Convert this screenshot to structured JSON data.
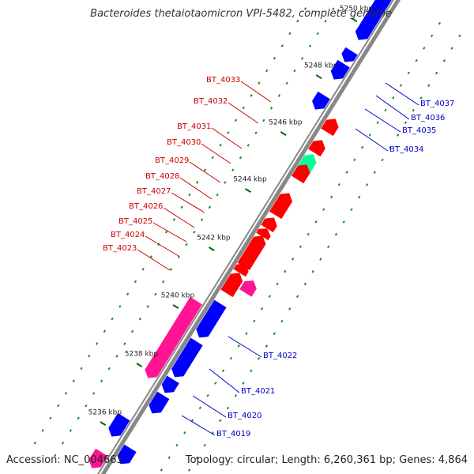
{
  "title": "Bacteroides thetaiotaomicron VPI-5482, complete genome",
  "footer": {
    "accession": "Accession: NC_004663",
    "summary": "Topology: circular; Length: 6,260,361 bp; Genes: 4,864"
  },
  "colors": {
    "backbone": "#888888",
    "backbone_highlight": "#ffffff",
    "forward": "#0000ff",
    "reverse": "#ff0000",
    "rna": "#ff1493",
    "highlight": "#00ff99",
    "dot": "#1a8f1a",
    "tick_major": "#006400",
    "label_red": "#cc0000",
    "label_blue": "#0000cc"
  },
  "ticks": [
    "5236 kbp",
    "5238 kbp",
    "5240 kbp",
    "5242 kbp",
    "5244 kbp",
    "5246 kbp",
    "5248 kbp",
    "5250 kbp"
  ],
  "genes": [
    {
      "id": "BT_4033",
      "strand": "minus",
      "category": "CDS"
    },
    {
      "id": "BT_4032",
      "strand": "minus",
      "category": "CDS"
    },
    {
      "id": "BT_4031",
      "strand": "minus",
      "category": "CDS"
    },
    {
      "id": "BT_4030",
      "strand": "minus",
      "category": "CDS"
    },
    {
      "id": "BT_4029",
      "strand": "minus",
      "category": "CDS"
    },
    {
      "id": "BT_4028",
      "strand": "minus",
      "category": "CDS"
    },
    {
      "id": "BT_4027",
      "strand": "minus",
      "category": "CDS"
    },
    {
      "id": "BT_4026",
      "strand": "minus",
      "category": "CDS"
    },
    {
      "id": "BT_4025",
      "strand": "minus",
      "category": "CDS"
    },
    {
      "id": "BT_4024",
      "strand": "minus",
      "category": "CDS"
    },
    {
      "id": "BT_4023",
      "strand": "minus",
      "category": "CDS"
    },
    {
      "id": "BT_4037",
      "strand": "plus",
      "category": "CDS"
    },
    {
      "id": "BT_4036",
      "strand": "plus",
      "category": "CDS"
    },
    {
      "id": "BT_4035",
      "strand": "plus",
      "category": "CDS"
    },
    {
      "id": "BT_4034",
      "strand": "plus",
      "category": "CDS"
    },
    {
      "id": "BT_4022",
      "strand": "plus",
      "category": "CDS"
    },
    {
      "id": "BT_4021",
      "strand": "plus",
      "category": "CDS"
    },
    {
      "id": "BT_4020",
      "strand": "plus",
      "category": "CDS"
    },
    {
      "id": "BT_4019",
      "strand": "plus",
      "category": "CDS"
    }
  ]
}
